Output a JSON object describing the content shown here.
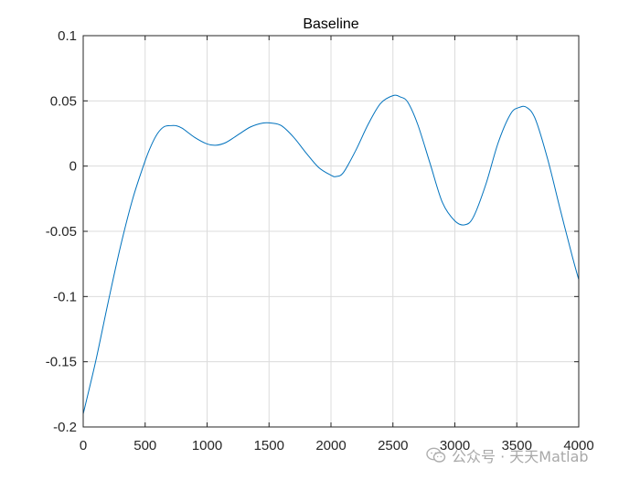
{
  "chart_data": {
    "type": "line",
    "title": "Baseline",
    "xlabel": "",
    "ylabel": "",
    "xlim": [
      0,
      4000
    ],
    "ylim": [
      -0.2,
      0.1
    ],
    "xticks": [
      0,
      500,
      1000,
      1500,
      2000,
      2500,
      3000,
      3500,
      4000
    ],
    "xtick_labels": [
      "0",
      "500",
      "1000",
      "1500",
      "2000",
      "2500",
      "3000",
      "3500",
      "4000"
    ],
    "yticks": [
      -0.2,
      -0.15,
      -0.1,
      -0.05,
      0,
      0.05,
      0.1
    ],
    "ytick_labels": [
      "-0.2",
      "-0.15",
      "-0.1",
      "-0.05",
      "0",
      "0.05",
      "0.1"
    ],
    "grid": true,
    "series": [
      {
        "color": "#0072bd",
        "x": [
          0,
          100,
          200,
          300,
          400,
          500,
          550,
          600,
          650,
          700,
          750,
          800,
          900,
          1000,
          1070,
          1150,
          1250,
          1350,
          1450,
          1520,
          1600,
          1700,
          1800,
          1900,
          2000,
          2040,
          2100,
          2200,
          2300,
          2400,
          2500,
          2560,
          2620,
          2700,
          2800,
          2900,
          3000,
          3080,
          3150,
          3250,
          3350,
          3450,
          3520,
          3580,
          3650,
          3750,
          3850,
          3950,
          4000
        ],
        "y": [
          -0.19,
          -0.15,
          -0.105,
          -0.062,
          -0.025,
          0.004,
          0.016,
          0.025,
          0.03,
          0.031,
          0.031,
          0.029,
          0.022,
          0.017,
          0.016,
          0.018,
          0.024,
          0.03,
          0.033,
          0.033,
          0.031,
          0.022,
          0.01,
          -0.001,
          -0.007,
          -0.008,
          -0.005,
          0.012,
          0.032,
          0.048,
          0.054,
          0.053,
          0.049,
          0.032,
          0.002,
          -0.028,
          -0.042,
          -0.045,
          -0.039,
          -0.014,
          0.018,
          0.04,
          0.045,
          0.045,
          0.036,
          0.005,
          -0.033,
          -0.07,
          -0.087
        ]
      }
    ]
  },
  "watermark": {
    "icon": "wechat-icon",
    "text": "公众号 · 天天Matlab"
  }
}
